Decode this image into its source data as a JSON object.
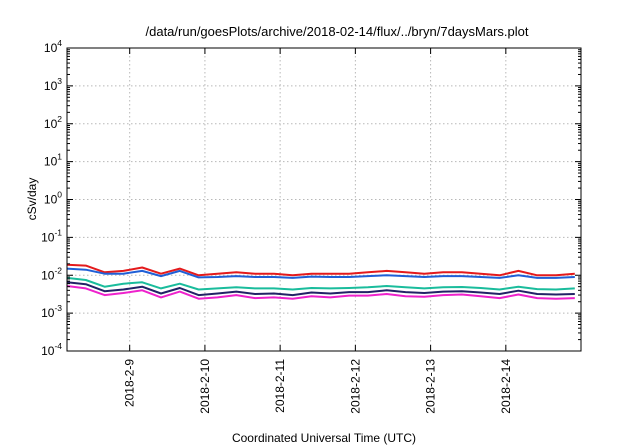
{
  "chart_data": {
    "type": "line",
    "title": "/data/run/goesPlots/archive/2018-02-14/flux/../bryn/7daysMars.plot",
    "xlabel": "Coordinated Universal Time (UTC)",
    "ylabel": "cSv/day",
    "yscale": "log",
    "ylim": [
      0.0001,
      10000
    ],
    "xlim": [
      "2018-02-08T04:00",
      "2018-02-14T23:59"
    ],
    "grid": true,
    "y_ticks": [
      {
        "base": "10",
        "exp": "-4"
      },
      {
        "base": "10",
        "exp": "-3"
      },
      {
        "base": "10",
        "exp": "-2"
      },
      {
        "base": "10",
        "exp": "-1"
      },
      {
        "base": "10",
        "exp": "0"
      },
      {
        "base": "10",
        "exp": "1"
      },
      {
        "base": "10",
        "exp": "2"
      },
      {
        "base": "10",
        "exp": "3"
      },
      {
        "base": "10",
        "exp": "4"
      }
    ],
    "x_ticks": [
      {
        "label": "2018-2-9",
        "x": "2018-02-09T00:00"
      },
      {
        "label": "2018-2-10",
        "x": "2018-02-10T00:00"
      },
      {
        "label": "2018-2-11",
        "x": "2018-02-11T00:00"
      },
      {
        "label": "2018-2-12",
        "x": "2018-02-12T00:00"
      },
      {
        "label": "2018-2-13",
        "x": "2018-02-13T00:00"
      },
      {
        "label": "2018-2-14",
        "x": "2018-02-14T00:00"
      }
    ],
    "x": [
      "2018-02-08T04:00",
      "2018-02-08T10:00",
      "2018-02-08T16:00",
      "2018-02-08T22:00",
      "2018-02-09T04:00",
      "2018-02-09T10:00",
      "2018-02-09T16:00",
      "2018-02-09T22:00",
      "2018-02-10T04:00",
      "2018-02-10T10:00",
      "2018-02-10T16:00",
      "2018-02-10T22:00",
      "2018-02-11T04:00",
      "2018-02-11T10:00",
      "2018-02-11T16:00",
      "2018-02-11T22:00",
      "2018-02-12T04:00",
      "2018-02-12T10:00",
      "2018-02-12T16:00",
      "2018-02-12T22:00",
      "2018-02-13T04:00",
      "2018-02-13T10:00",
      "2018-02-13T16:00",
      "2018-02-13T22:00",
      "2018-02-14T04:00",
      "2018-02-14T10:00",
      "2018-02-14T16:00",
      "2018-02-14T22:00"
    ],
    "series": [
      {
        "color": "#e41a1c",
        "values": [
          0.019,
          0.018,
          0.012,
          0.013,
          0.016,
          0.011,
          0.015,
          0.01,
          0.011,
          0.012,
          0.011,
          0.011,
          0.01,
          0.011,
          0.011,
          0.011,
          0.012,
          0.013,
          0.012,
          0.011,
          0.012,
          0.012,
          0.011,
          0.01,
          0.013,
          0.01,
          0.01,
          0.011
        ]
      },
      {
        "color": "#1f5fd6",
        "values": [
          0.015,
          0.014,
          0.011,
          0.011,
          0.013,
          0.0095,
          0.013,
          0.0088,
          0.009,
          0.0095,
          0.009,
          0.009,
          0.0085,
          0.0092,
          0.009,
          0.009,
          0.0095,
          0.01,
          0.0095,
          0.009,
          0.0095,
          0.0095,
          0.009,
          0.0085,
          0.01,
          0.0085,
          0.0085,
          0.009
        ]
      },
      {
        "color": "#1abc9c",
        "values": [
          0.0085,
          0.0075,
          0.005,
          0.006,
          0.0065,
          0.0045,
          0.006,
          0.0042,
          0.0045,
          0.0048,
          0.0045,
          0.0045,
          0.0042,
          0.0046,
          0.0045,
          0.0046,
          0.0048,
          0.0052,
          0.0048,
          0.0045,
          0.0048,
          0.0049,
          0.0046,
          0.0042,
          0.005,
          0.0043,
          0.0042,
          0.0045
        ]
      },
      {
        "color": "#222266",
        "values": [
          0.0065,
          0.0058,
          0.0038,
          0.0042,
          0.005,
          0.0033,
          0.0046,
          0.003,
          0.0033,
          0.0037,
          0.0032,
          0.0033,
          0.003,
          0.0035,
          0.0033,
          0.0036,
          0.0036,
          0.004,
          0.0036,
          0.0034,
          0.0037,
          0.0038,
          0.0035,
          0.0032,
          0.0039,
          0.0032,
          0.0031,
          0.0032
        ]
      },
      {
        "color": "#ee22cc",
        "values": [
          0.0052,
          0.0045,
          0.003,
          0.0034,
          0.004,
          0.0026,
          0.0037,
          0.0024,
          0.0026,
          0.003,
          0.0025,
          0.0026,
          0.0024,
          0.0028,
          0.0026,
          0.0029,
          0.0029,
          0.0032,
          0.0028,
          0.0027,
          0.003,
          0.0031,
          0.0028,
          0.0025,
          0.0031,
          0.0025,
          0.0024,
          0.0025
        ]
      }
    ]
  }
}
